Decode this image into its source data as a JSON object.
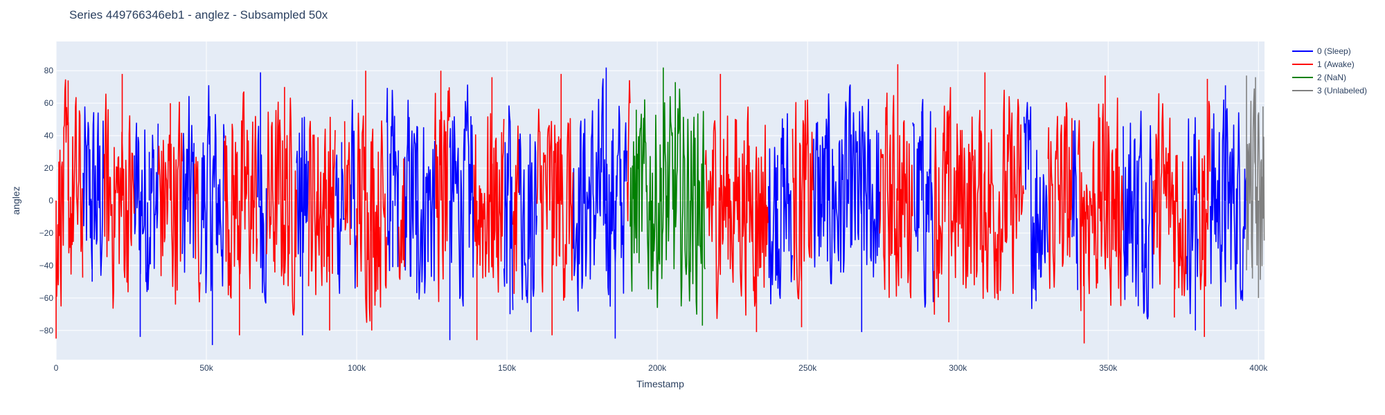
{
  "chart_data": {
    "type": "line",
    "title": "Series 449766346eb1 - anglez - Subsampled 50x",
    "xlabel": "Timestamp",
    "ylabel": "anglez",
    "xlim": [
      0,
      402000
    ],
    "ylim": [
      -98,
      98
    ],
    "x_ticks": [
      {
        "value": 0,
        "label": "0"
      },
      {
        "value": 50000,
        "label": "50k"
      },
      {
        "value": 100000,
        "label": "100k"
      },
      {
        "value": 150000,
        "label": "150k"
      },
      {
        "value": 200000,
        "label": "200k"
      },
      {
        "value": 250000,
        "label": "250k"
      },
      {
        "value": 300000,
        "label": "300k"
      },
      {
        "value": 350000,
        "label": "350k"
      },
      {
        "value": 400000,
        "label": "400k"
      }
    ],
    "y_ticks": [
      {
        "value": 80,
        "label": "80"
      },
      {
        "value": 60,
        "label": "60"
      },
      {
        "value": 40,
        "label": "40"
      },
      {
        "value": 20,
        "label": "20"
      },
      {
        "value": 0,
        "label": "0"
      },
      {
        "value": -20,
        "label": "−20"
      },
      {
        "value": -40,
        "label": "−40"
      },
      {
        "value": -60,
        "label": "−60"
      },
      {
        "value": -80,
        "label": "−80"
      }
    ],
    "grid": true,
    "legend_position": "top-right",
    "background": "#e5ecf6",
    "series": [
      {
        "name": "0 (Sleep)",
        "color": "#0000ff",
        "segments": [
          [
            9000,
            16000
          ],
          [
            26000,
            34000
          ],
          [
            42000,
            46000
          ],
          [
            48000,
            56000
          ],
          [
            67000,
            70000
          ],
          [
            80000,
            84000
          ],
          [
            93000,
            96000
          ],
          [
            98000,
            100000
          ],
          [
            110000,
            114000
          ],
          [
            116000,
            126000
          ],
          [
            131000,
            139000
          ],
          [
            149000,
            152000
          ],
          [
            154000,
            160000
          ],
          [
            172000,
            190000
          ],
          [
            237000,
            245000
          ],
          [
            252000,
            274000
          ],
          [
            285000,
            292000
          ],
          [
            322000,
            330000
          ],
          [
            338000,
            340000
          ],
          [
            355000,
            365000
          ],
          [
            376000,
            380000
          ],
          [
            384000,
            396000
          ]
        ],
        "points": [
          {
            "x": 12000,
            "y": -50
          },
          {
            "x": 14000,
            "y": 45
          },
          {
            "x": 28000,
            "y": -84
          },
          {
            "x": 31000,
            "y": 30
          },
          {
            "x": 44000,
            "y": 2
          },
          {
            "x": 52000,
            "y": -89
          },
          {
            "x": 54000,
            "y": 10
          },
          {
            "x": 68000,
            "y": 79
          },
          {
            "x": 82000,
            "y": -83
          },
          {
            "x": 95000,
            "y": 36
          },
          {
            "x": 112000,
            "y": -41
          },
          {
            "x": 120000,
            "y": -57
          },
          {
            "x": 131000,
            "y": -86
          },
          {
            "x": 138000,
            "y": 52
          },
          {
            "x": 151000,
            "y": -70
          },
          {
            "x": 158000,
            "y": -81
          },
          {
            "x": 183000,
            "y": 82
          },
          {
            "x": 186000,
            "y": -85
          },
          {
            "x": 240000,
            "y": 28
          },
          {
            "x": 257000,
            "y": 66
          },
          {
            "x": 268000,
            "y": -81
          },
          {
            "x": 288000,
            "y": 55
          },
          {
            "x": 326000,
            "y": -62
          },
          {
            "x": 360000,
            "y": -65
          },
          {
            "x": 379000,
            "y": -80
          },
          {
            "x": 389000,
            "y": 71
          }
        ]
      },
      {
        "name": "1 (Awake)",
        "color": "#ff0000",
        "segments": [
          [
            0,
            9000
          ],
          [
            16000,
            26000
          ],
          [
            34000,
            42000
          ],
          [
            46000,
            48000
          ],
          [
            56000,
            67000
          ],
          [
            70000,
            80000
          ],
          [
            84000,
            93000
          ],
          [
            96000,
            98000
          ],
          [
            100000,
            110000
          ],
          [
            114000,
            116000
          ],
          [
            126000,
            131000
          ],
          [
            139000,
            149000
          ],
          [
            152000,
            154000
          ],
          [
            160000,
            172000
          ],
          [
            190000,
            191000
          ],
          [
            216000,
            237000
          ],
          [
            245000,
            252000
          ],
          [
            274000,
            285000
          ],
          [
            292000,
            322000
          ],
          [
            330000,
            338000
          ],
          [
            340000,
            355000
          ],
          [
            365000,
            376000
          ],
          [
            380000,
            384000
          ]
        ],
        "points": [
          {
            "x": 0,
            "y": -85
          },
          {
            "x": 4000,
            "y": 74
          },
          {
            "x": 22000,
            "y": 78
          },
          {
            "x": 38000,
            "y": 60
          },
          {
            "x": 45000,
            "y": -87
          },
          {
            "x": 61000,
            "y": -83
          },
          {
            "x": 76000,
            "y": 70
          },
          {
            "x": 91000,
            "y": -80
          },
          {
            "x": 103000,
            "y": 80
          },
          {
            "x": 105000,
            "y": -80
          },
          {
            "x": 128000,
            "y": 80
          },
          {
            "x": 140000,
            "y": -86
          },
          {
            "x": 145000,
            "y": 76
          },
          {
            "x": 165000,
            "y": -83
          },
          {
            "x": 168000,
            "y": 78
          },
          {
            "x": 221000,
            "y": 78
          },
          {
            "x": 233000,
            "y": -81
          },
          {
            "x": 248000,
            "y": -78
          },
          {
            "x": 280000,
            "y": 84
          },
          {
            "x": 297000,
            "y": -75
          },
          {
            "x": 309000,
            "y": 79
          },
          {
            "x": 342000,
            "y": -88
          },
          {
            "x": 349000,
            "y": 77
          },
          {
            "x": 372000,
            "y": -72
          },
          {
            "x": 382000,
            "y": -84
          },
          {
            "x": 383000,
            "y": 75
          }
        ]
      },
      {
        "name": "2 (NaN)",
        "color": "#008000",
        "segments": [
          [
            191000,
            216000
          ]
        ],
        "points": [
          {
            "x": 193000,
            "y": 56
          },
          {
            "x": 198000,
            "y": -50
          },
          {
            "x": 202000,
            "y": 82
          },
          {
            "x": 206000,
            "y": 73
          },
          {
            "x": 211000,
            "y": -44
          },
          {
            "x": 215000,
            "y": -77
          }
        ]
      },
      {
        "name": "3 (Unlabeled)",
        "color": "#808080",
        "segments": [
          [
            396000,
            402000
          ]
        ],
        "points": [
          {
            "x": 396000,
            "y": 77
          },
          {
            "x": 398000,
            "y": -48
          },
          {
            "x": 399000,
            "y": 76
          },
          {
            "x": 400000,
            "y": -60
          },
          {
            "x": 401500,
            "y": 58
          }
        ]
      }
    ]
  }
}
